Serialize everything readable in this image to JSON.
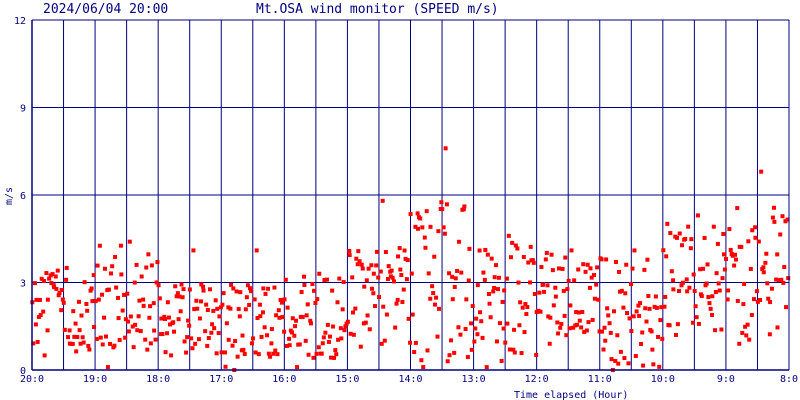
{
  "header": {
    "timestamp": "2024/06/04 20:00",
    "title": "Mt.OSA wind monitor (SPEED m/s)"
  },
  "chart_data": {
    "type": "scatter",
    "title": "Mt.OSA wind monitor (SPEED m/s)",
    "xlabel": "Time elapsed (Hour)",
    "ylabel": "m/s",
    "x_direction": "time runs right-to-left: 20:0 at left, 8:0 at right",
    "xlim": [
      0,
      12
    ],
    "ylim": [
      0,
      12
    ],
    "grid": true,
    "x_tick_labels": [
      "20:0",
      "19:0",
      "18:0",
      "17:0",
      "16:0",
      "15:0",
      "14:0",
      "13:0",
      "12:0",
      "11:0",
      "10:0",
      "9:0",
      "8:0"
    ],
    "y_tick_labels": [
      "0",
      "3",
      "6",
      "9",
      "12"
    ],
    "y_ticks": [
      0,
      3,
      6,
      9,
      12
    ],
    "colors": {
      "axis": "#000080",
      "points": "#ff0000",
      "background": "#ffffff"
    },
    "points_hourly_summary": [
      {
        "hour_label": "20:0-19:0",
        "typical": 2.0,
        "min": 0.5,
        "max": 3.5
      },
      {
        "hour_label": "19:0-18:0",
        "typical": 2.5,
        "min": 0.1,
        "max": 4.4
      },
      {
        "hour_label": "18:0-17:0",
        "typical": 1.8,
        "min": 0.5,
        "max": 4.1
      },
      {
        "hour_label": "17:0-16:0",
        "typical": 1.5,
        "min": 0.0,
        "max": 4.1
      },
      {
        "hour_label": "16:0-15:0",
        "typical": 1.8,
        "min": 0.1,
        "max": 3.3
      },
      {
        "hour_label": "15:0-14:0",
        "typical": 2.6,
        "min": 0.8,
        "max": 5.8
      },
      {
        "hour_label": "14:0-13:0",
        "typical": 3.0,
        "min": 0.1,
        "max": 7.6
      },
      {
        "hour_label": "13:0-12:0",
        "typical": 2.3,
        "min": 0.1,
        "max": 4.6
      },
      {
        "hour_label": "12:0-11:0",
        "typical": 2.6,
        "min": 0.9,
        "max": 4.1
      },
      {
        "hour_label": "11:0-10:0",
        "typical": 2.0,
        "min": 0.0,
        "max": 4.1
      },
      {
        "hour_label": "10:0-9:0",
        "typical": 3.2,
        "min": 1.2,
        "max": 5.3
      },
      {
        "hour_label": "9:0-8:0",
        "typical": 3.4,
        "min": 0.9,
        "max": 6.8
      }
    ]
  }
}
